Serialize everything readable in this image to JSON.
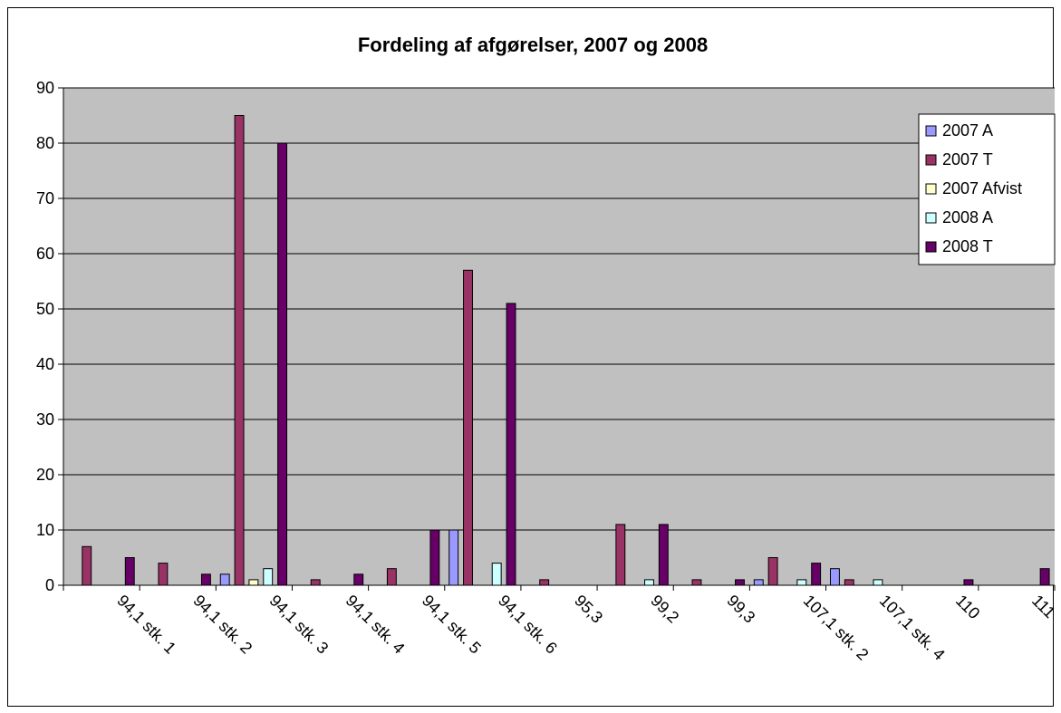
{
  "chart_data": {
    "type": "bar",
    "title": "Fordeling af afgørelser, 2007 og 2008",
    "xlabel": "",
    "ylabel": "",
    "ylim": [
      0,
      90
    ],
    "yticks": [
      0,
      10,
      20,
      30,
      40,
      50,
      60,
      70,
      80,
      90
    ],
    "grid": true,
    "legend_position": "top-right",
    "plot_background": "#c0c0c0",
    "categories": [
      "94,1 stk. 1",
      "94,1 stk. 2",
      "94,1 stk. 3",
      "94,1 stk. 4",
      "94,1 stk. 5",
      "94,1 stk. 6",
      "95,3",
      "99,2",
      "99,3",
      "107,1 stk. 2",
      "107,1 stk. 4",
      "110",
      "111"
    ],
    "series": [
      {
        "name": "2007 A",
        "color": "#9999ff",
        "values": [
          0,
          0,
          2,
          0,
          0,
          10,
          0,
          0,
          0,
          1,
          3,
          0,
          0
        ]
      },
      {
        "name": "2007 T",
        "color": "#993366",
        "values": [
          7,
          4,
          85,
          1,
          3,
          57,
          1,
          11,
          1,
          5,
          1,
          0,
          0
        ]
      },
      {
        "name": "2007 Afvist",
        "color": "#ffffcc",
        "values": [
          0,
          0,
          1,
          0,
          0,
          0,
          0,
          0,
          0,
          0,
          0,
          0,
          0
        ]
      },
      {
        "name": "2008 A",
        "color": "#ccffff",
        "values": [
          0,
          0,
          3,
          0,
          0,
          4,
          0,
          1,
          0,
          1,
          1,
          0,
          0
        ]
      },
      {
        "name": "2008 T",
        "color": "#660066",
        "values": [
          5,
          2,
          80,
          2,
          10,
          51,
          0,
          11,
          1,
          4,
          0,
          1,
          3
        ]
      }
    ]
  }
}
